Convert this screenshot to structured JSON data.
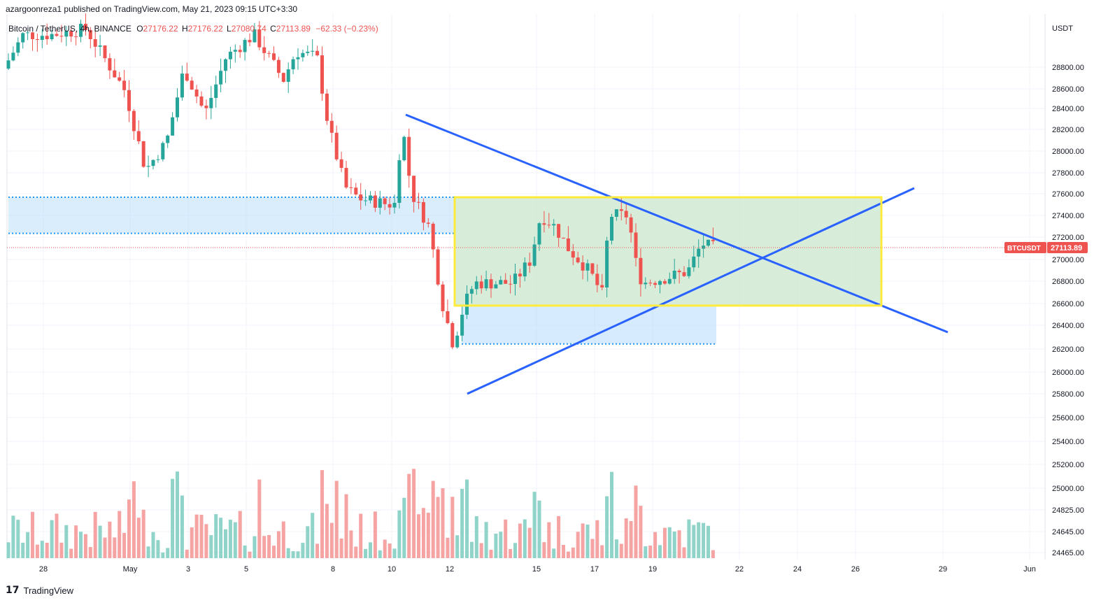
{
  "header": {
    "published_line": "azargoonreza1 published on TradingView.com, May 21, 2023 09:15 UTC+3:30"
  },
  "legend": {
    "symbol": "Bitcoin / TetherUS, 4h, BINANCE",
    "open_label": "O",
    "open": "27176.22",
    "high_label": "H",
    "high": "27176.22",
    "low_label": "L",
    "low": "27080.74",
    "close_label": "C",
    "close": "27113.89",
    "change": "−62.33 (−0.23%)"
  },
  "price_axis": {
    "currency": "USDT",
    "ticks": [
      "28800.00",
      "28600.00",
      "28400.00",
      "28200.00",
      "28000.00",
      "27800.00",
      "27600.00",
      "27400.00",
      "27200.00",
      "27000.00",
      "26800.00",
      "26600.00",
      "26400.00",
      "26200.00",
      "26000.00",
      "25800.00",
      "25600.00",
      "25400.00",
      "25200.00",
      "25000.00",
      "24825.00",
      "24645.00",
      "24465.00"
    ],
    "last_price_label": "BTCUSDT",
    "last_price": "27113.89"
  },
  "time_axis": {
    "labels": [
      "28",
      "May",
      "3",
      "5",
      "8",
      "10",
      "12",
      "15",
      "17",
      "19",
      "22",
      "24",
      "26",
      "29",
      "Jun"
    ]
  },
  "footer": {
    "logo": "17",
    "brand": "TradingView"
  },
  "colors": {
    "up": "#26a69a",
    "down": "#ef5350",
    "up_volume": "#8fd3c9",
    "down_volume": "#f5a3a3",
    "trendline": "#2962ff",
    "box_border": "#ffeb3b",
    "box_fill": "#c8e6c9",
    "zone_fill": "#bbdefb",
    "zone_border": "#2196f3"
  },
  "chart_data": {
    "type": "candlestick",
    "title": "Bitcoin / TetherUS, 4h, BINANCE",
    "ylabel": "USDT",
    "ylim": [
      25600,
      29050
    ],
    "last_close": 27113.89,
    "ohlc_sample": [
      {
        "t": "May 10",
        "o": 27600,
        "h": 28330,
        "l": 27200,
        "c": 28300
      },
      {
        "t": "May 12",
        "o": 26300,
        "h": 26500,
        "l": 26100,
        "c": 26200
      },
      {
        "t": "May 12 (low)",
        "o": 26250,
        "h": 26700,
        "l": 25800,
        "c": 26600
      },
      {
        "t": "May 16",
        "o": 27350,
        "h": 27650,
        "l": 27200,
        "c": 27450
      },
      {
        "t": "May 18",
        "o": 27150,
        "h": 27200,
        "l": 26350,
        "c": 26720
      },
      {
        "t": "May 21",
        "o": 27176.22,
        "h": 27176.22,
        "l": 27080.74,
        "c": 27113.89
      }
    ],
    "annotations": {
      "descending_trendline": [
        {
          "date": "May 10",
          "price": 28330
        },
        {
          "date": "May 28",
          "price": 26350
        }
      ],
      "ascending_trendline": [
        {
          "date": "May 12",
          "price": 25820
        },
        {
          "date": "May 28",
          "price": 27640
        }
      ],
      "range_box": {
        "from": "May 12",
        "to": "May 26",
        "top": 27560,
        "bottom": 26600
      },
      "zone_upper": {
        "top": 27560,
        "bottom": 27240
      },
      "zone_lower": {
        "top": 26600,
        "bottom": 26260
      }
    }
  }
}
